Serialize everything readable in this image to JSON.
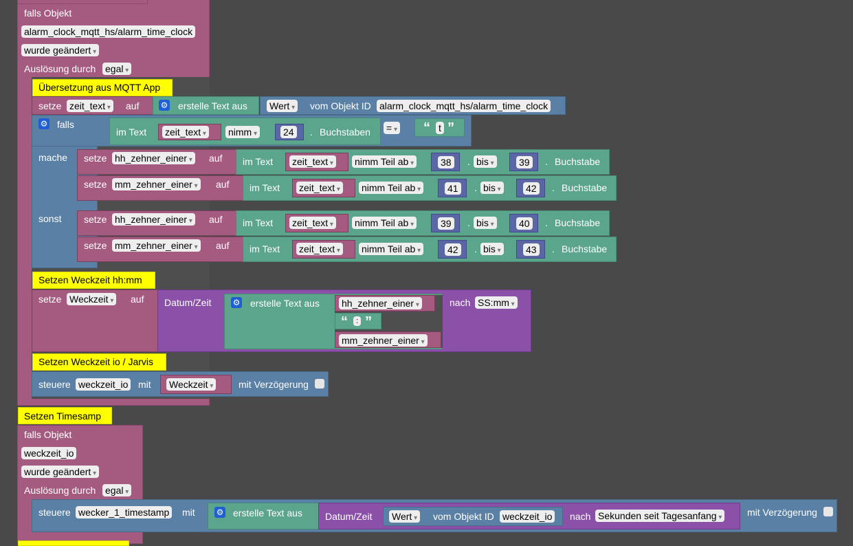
{
  "block1": {
    "trigger_label": "falls Objekt",
    "object_id": "alarm_clock_mqtt_hs/alarm_time_clock",
    "changed": "wurde geändert",
    "cause_label": "Auslösung durch",
    "cause_value": "egal"
  },
  "comments": {
    "mqtt": "Übersetzung aus MQTT App",
    "weckzeit_hhmm": "Setzen Weckzeit hh:mm",
    "weckzeit_io": "Setzen Weckzeit io / Jarvis",
    "timesamp": "Setzen Timesamp"
  },
  "set_zeit_text": {
    "setze": "setze",
    "var": "zeit_text",
    "auf": "auf",
    "create_text": "erstelle Text aus",
    "wert": "Wert",
    "vom_objekt": "vom Objekt ID",
    "object_id": "alarm_clock_mqtt_hs/alarm_time_clock"
  },
  "if_block": {
    "falls": "falls",
    "mache": "mache",
    "sonst": "sonst",
    "cond_im_text": "im Text",
    "cond_var": "zeit_text",
    "cond_nimm": "nimm",
    "cond_num": "24",
    "cond_buchstaben": "Buchstaben",
    "cond_op": "=",
    "cond_string": "t"
  },
  "substr_rows": [
    {
      "setze": "setze",
      "var": "hh_zehner_einer",
      "auf": "auf",
      "im_text": "im Text",
      "src": "zeit_text",
      "op": "nimm Teil ab",
      "from": "38",
      "bis": "bis",
      "to": "39",
      "buchstabe": "Buchstabe"
    },
    {
      "setze": "setze",
      "var": "mm_zehner_einer",
      "auf": "auf",
      "im_text": "im Text",
      "src": "zeit_text",
      "op": "nimm Teil ab",
      "from": "41",
      "bis": "bis",
      "to": "42",
      "buchstabe": "Buchstabe"
    },
    {
      "setze": "setze",
      "var": "hh_zehner_einer",
      "auf": "auf",
      "im_text": "im Text",
      "src": "zeit_text",
      "op": "nimm Teil ab",
      "from": "39",
      "bis": "bis",
      "to": "40",
      "buchstabe": "Buchstabe"
    },
    {
      "setze": "setze",
      "var": "mm_zehner_einer",
      "auf": "auf",
      "im_text": "im Text",
      "src": "zeit_text",
      "op": "nimm Teil ab",
      "from": "42",
      "bis": "bis",
      "to": "43",
      "buchstabe": "Buchstabe"
    }
  ],
  "set_weckzeit": {
    "setze": "setze",
    "var": "Weckzeit",
    "auf": "auf",
    "datum_zeit": "Datum/Zeit",
    "create_text": "erstelle Text aus",
    "item1": "hh_zehner_einer",
    "item2": ":",
    "item3": "mm_zehner_einer",
    "nach": "nach",
    "format": "SS:mm"
  },
  "control_io": {
    "steuere": "steuere",
    "target": "weckzeit_io",
    "mit": "mit",
    "value": "Weckzeit",
    "delay": "mit Verzögerung"
  },
  "block2": {
    "trigger_label": "falls Objekt",
    "object_id": "weckzeit_io",
    "changed": "wurde geändert",
    "cause_label": "Auslösung durch",
    "cause_value": "egal",
    "steuere": "steuere",
    "target": "wecker_1_timestamp",
    "mit": "mit",
    "create_text": "erstelle Text aus",
    "datum_zeit": "Datum/Zeit",
    "wert": "Wert",
    "vom_objekt": "vom Objekt ID",
    "source_id": "weckzeit_io",
    "nach": "nach",
    "format": "Sekunden seit Tagesanfang",
    "delay": "mit Verzögerung"
  },
  "colors": {
    "workspace": "#494949",
    "event": "#a55b80",
    "control": "#5b80a5",
    "text": "#5ba58c",
    "datetime": "#8b50a8",
    "number": "#5b67a5",
    "comment": "#ffff00"
  }
}
